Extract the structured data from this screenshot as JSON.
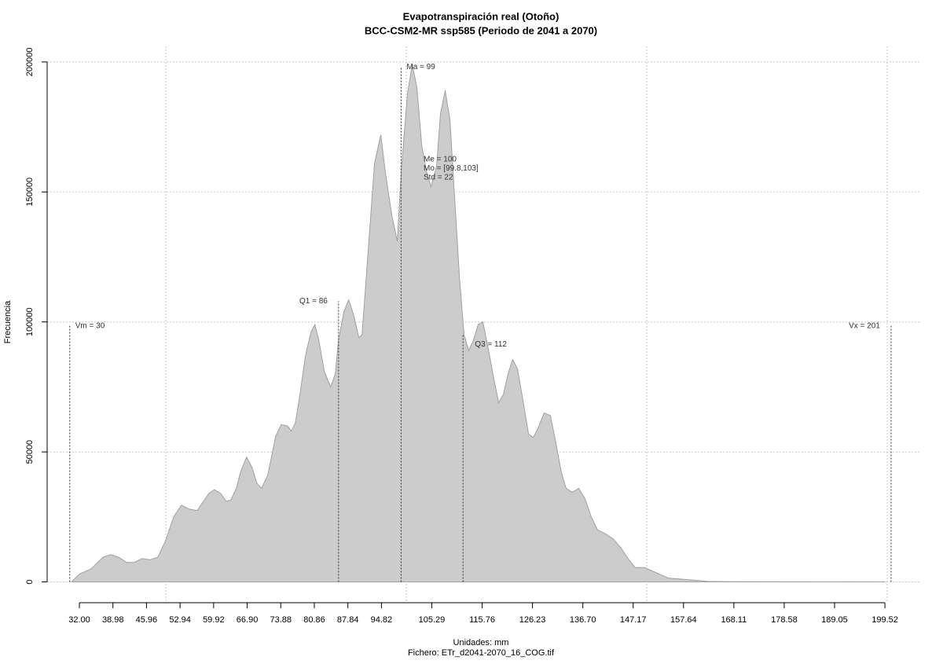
{
  "chart_data": {
    "type": "area",
    "title": "Evapotranspiración real (Otoño)",
    "subtitle": "BCC-CSM2-MR ssp585 (Periodo de 2041 a 2070)",
    "x_label": "Unidades: mm",
    "caption": "Fichero: ETr_d2041-2070_16_COG.tif",
    "y_label": "Frecuencia",
    "color": "#cccccc",
    "grid": true,
    "xlim": [
      25.3,
      206.7
    ],
    "ylim": [
      -8000,
      206000
    ],
    "yticks": [
      0,
      50000,
      100000,
      150000,
      200000
    ],
    "xgrid": [
      50,
      100,
      150,
      200
    ],
    "xticks": [
      {
        "value": 32,
        "label": "32.00"
      },
      38.98,
      45.96,
      52.94,
      59.92,
      {
        "value": 66.9,
        "label": "66.90"
      },
      73.88,
      80.86,
      87.84,
      94.82,
      105.29,
      115.76,
      126.23,
      {
        "value": 136.7,
        "label": "136.70"
      },
      147.17,
      157.64,
      168.11,
      178.58,
      189.05,
      199.52
    ],
    "x": [
      30.4,
      32.0,
      34.45,
      36.9,
      38.53,
      40.16,
      41.8,
      43.43,
      45.06,
      46.69,
      48.33,
      49.96,
      51.59,
      53.22,
      54.86,
      56.49,
      58.94,
      60.08,
      61.39,
      62.53,
      63.51,
      64.65,
      65.47,
      66.78,
      67.92,
      68.9,
      69.88,
      71.18,
      72.82,
      73.96,
      75.27,
      76.08,
      76.9,
      77.71,
      79.02,
      80.16,
      80.98,
      81.8,
      82.94,
      84.24,
      85.22,
      85.88,
      87.02,
      88.0,
      88.98,
      90.12,
      90.78,
      91.92,
      93.39,
      94.69,
      95.67,
      96.98,
      98.12,
      98.94,
      100.24,
      101.22,
      102.2,
      103.18,
      104.16,
      105.14,
      106.29,
      107.1,
      108.08,
      109.06,
      110.04,
      111.02,
      112.0,
      112.98,
      113.96,
      114.94,
      115.92,
      116.9,
      118.2,
      119.18,
      120.16,
      121.14,
      122.12,
      123.1,
      124.24,
      125.39,
      126.37,
      127.35,
      128.65,
      129.96,
      130.94,
      132.24,
      133.22,
      134.53,
      135.84,
      137.14,
      138.45,
      139.76,
      141.39,
      143.02,
      144.65,
      146.29,
      147.59,
      149.55,
      152.0,
      154.45,
      157.71,
      160.98,
      162.61,
      167.51,
      178.94,
      199.51
    ],
    "values": [
      0,
      3000,
      5000,
      9500,
      10500,
      9500,
      7500,
      7500,
      9000,
      8500,
      9500,
      16000,
      25000,
      29500,
      28000,
      27500,
      34000,
      35500,
      34000,
      31000,
      31500,
      36000,
      42000,
      48000,
      44000,
      38000,
      36000,
      41000,
      56000,
      60500,
      60000,
      58000,
      61000,
      70000,
      87000,
      96000,
      99000,
      93000,
      81000,
      75000,
      80000,
      93000,
      104000,
      108500,
      103000,
      94000,
      95000,
      124000,
      161000,
      172000,
      157000,
      141000,
      131000,
      158000,
      188000,
      199000,
      190000,
      168000,
      158000,
      152000,
      160000,
      180000,
      189000,
      178000,
      148000,
      118000,
      95000,
      89000,
      93000,
      99000,
      100000,
      91000,
      78000,
      69000,
      72000,
      80000,
      85500,
      82000,
      70000,
      57000,
      55500,
      59000,
      65000,
      64000,
      55000,
      42000,
      36000,
      34500,
      36000,
      32000,
      25000,
      20000,
      18500,
      16500,
      13000,
      8500,
      5500,
      5500,
      3500,
      1500,
      1000,
      500,
      200,
      100,
      50,
      0
    ],
    "annotations": [
      {
        "label": "Vm = 30",
        "x": 30.0,
        "y": 98500
      },
      {
        "label": "Q1 = 86",
        "x": 85.9,
        "y": 108000
      },
      {
        "label": "Ma = 99",
        "x": 98.9,
        "y": 198000
      },
      {
        "label": "Q3 = 112",
        "x": 111.8,
        "y": 95000
      },
      {
        "label": "Vx = 201",
        "x": 200.8,
        "y": 98500
      }
    ],
    "stats_text": [
      "Me = 100",
      "Mo = [99.8,103]",
      "Std = 22"
    ]
  }
}
